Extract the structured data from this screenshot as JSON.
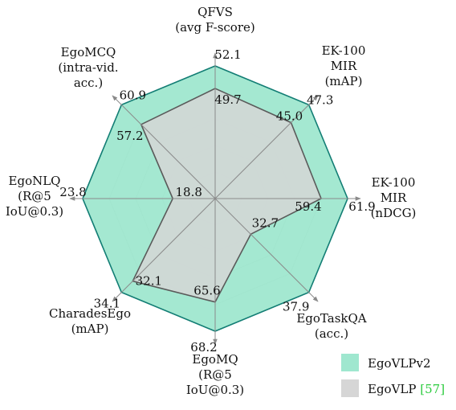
{
  "chart_data": {
    "type": "radar",
    "axes": [
      {
        "lines": [
          "QFVS",
          "(avg F-score)"
        ]
      },
      {
        "lines": [
          "EK-100",
          "MIR",
          "(mAP)"
        ]
      },
      {
        "lines": [
          "EK-100",
          "MIR",
          "(nDCG)"
        ]
      },
      {
        "lines": [
          "EgoTaskQA",
          "(acc.)"
        ]
      },
      {
        "lines": [
          "EgoMQ",
          "(R@5",
          "IoU@0.3)"
        ]
      },
      {
        "lines": [
          "CharadesEgo",
          "(mAP)"
        ]
      },
      {
        "lines": [
          "EgoNLQ",
          "(R@5",
          "IoU@0.3)"
        ]
      },
      {
        "lines": [
          "EgoMCQ",
          "(intra-vid.",
          "acc.)"
        ]
      }
    ],
    "series": [
      {
        "name": "EgoVLPv2",
        "values": [
          52.1,
          47.3,
          61.9,
          37.9,
          68.2,
          34.1,
          23.8,
          60.9
        ],
        "fraction": [
          1,
          1,
          1,
          1,
          1,
          1,
          1,
          1
        ],
        "fill": "#9fe7cf",
        "stroke": "#127d74"
      },
      {
        "name": "EgoVLP",
        "values": [
          49.7,
          45.0,
          59.4,
          32.7,
          65.6,
          32.1,
          18.8,
          57.2
        ],
        "fraction": [
          0.83,
          0.81,
          0.8,
          0.38,
          0.78,
          0.88,
          0.32,
          0.79
        ],
        "fill": "#d6d6d6",
        "stroke": "#5a5a5a"
      }
    ],
    "legend": {
      "placement": "bottom-right",
      "items": [
        {
          "label": "EgoVLPv2",
          "ref": ""
        },
        {
          "label": "EgoVLP ",
          "ref": "[57]",
          "ref_color": "#2ecc40"
        }
      ]
    },
    "grid": true,
    "grid_color": "#bdbdbd",
    "axis_color": "#8a8a8a"
  }
}
